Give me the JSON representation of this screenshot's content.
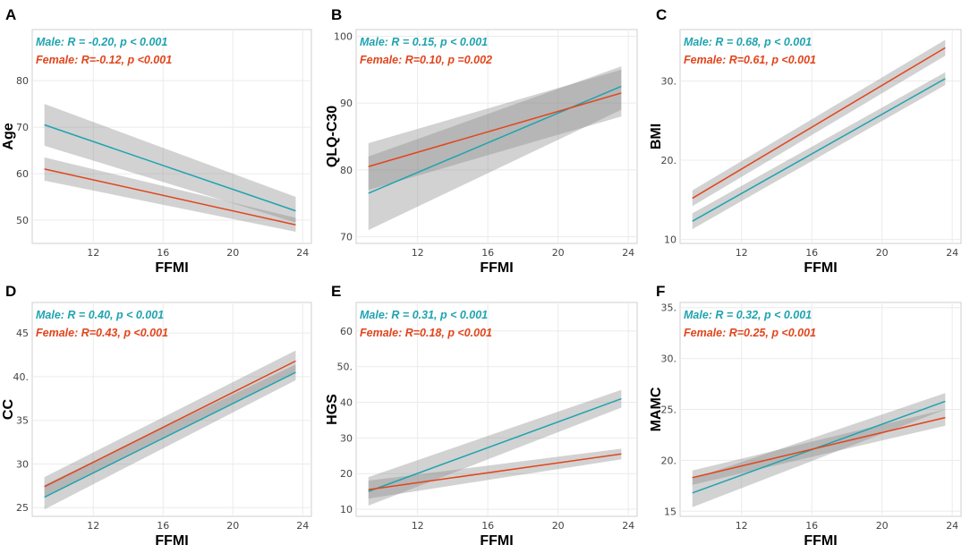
{
  "colors": {
    "male": "#1fa3b0",
    "female": "#e2451c",
    "band": "#8a8a8a",
    "grid": "#ebebeb",
    "frame": "#cfcfcf"
  },
  "chart_data": [
    {
      "type": "line",
      "panel": "A",
      "xlabel": "FFMI",
      "ylabel": "Age",
      "xlim": [
        8.5,
        24.5
      ],
      "ylim": [
        45,
        91
      ],
      "xticks": [
        12,
        16,
        20,
        24
      ],
      "yticks": [
        50,
        60,
        70,
        80
      ],
      "xtick_labels": [
        "12",
        "16",
        "20",
        "24"
      ],
      "ytick_labels": [
        "50",
        "60",
        "70",
        "80"
      ],
      "series": [
        {
          "name": "Male",
          "x": [
            9.2,
            23.6
          ],
          "y": [
            70.5,
            52
          ],
          "ci_lower": [
            66,
            49.5
          ],
          "ci_upper": [
            75,
            55
          ],
          "annotation": "Male: R = -0.20, p < 0.001"
        },
        {
          "name": "Female",
          "x": [
            9.2,
            23.6
          ],
          "y": [
            61,
            49
          ],
          "ci_lower": [
            58.5,
            47.5
          ],
          "ci_upper": [
            63.5,
            50.5
          ],
          "annotation": "Female: R=-0.12, p <0.001"
        }
      ]
    },
    {
      "type": "line",
      "panel": "B",
      "xlabel": "FFMI",
      "ylabel": "QLQ-C30",
      "xlim": [
        8.5,
        24.5
      ],
      "ylim": [
        69,
        101
      ],
      "xticks": [
        12,
        16,
        20,
        24
      ],
      "yticks": [
        70,
        80,
        90,
        100
      ],
      "xtick_labels": [
        "12",
        "16",
        "20",
        "24"
      ],
      "ytick_labels": [
        "70",
        "80",
        "90",
        "100"
      ],
      "series": [
        {
          "name": "Male",
          "x": [
            9.2,
            23.6
          ],
          "y": [
            76.5,
            92.5
          ],
          "ci_lower": [
            71,
            89
          ],
          "ci_upper": [
            82,
            95.5
          ],
          "annotation": "Male: R = 0.15, p < 0.001"
        },
        {
          "name": "Female",
          "x": [
            9.2,
            23.6
          ],
          "y": [
            80.5,
            91.5
          ],
          "ci_lower": [
            77,
            88
          ],
          "ci_upper": [
            84,
            95
          ],
          "annotation": "Female: R=0.10, p =0.002"
        }
      ]
    },
    {
      "type": "line",
      "panel": "C",
      "xlabel": "FFMI",
      "ylabel": "BMI",
      "xlim": [
        8.5,
        24.5
      ],
      "ylim": [
        9.5,
        36.5
      ],
      "xticks": [
        12,
        16,
        20,
        24
      ],
      "yticks": [
        10,
        20,
        30
      ],
      "xtick_labels": [
        "12",
        "16",
        "20",
        "24"
      ],
      "ytick_labels": [
        "10",
        "20.",
        "30."
      ],
      "series": [
        {
          "name": "Male",
          "x": [
            9.2,
            23.6
          ],
          "y": [
            12.3,
            30.3
          ],
          "ci_lower": [
            11.3,
            29.5
          ],
          "ci_upper": [
            13.3,
            31.1
          ],
          "annotation": "Male: R = 0.68, p < 0.001"
        },
        {
          "name": "Female",
          "x": [
            9.2,
            23.6
          ],
          "y": [
            15.2,
            34.2
          ],
          "ci_lower": [
            14.2,
            33.2
          ],
          "ci_upper": [
            16.2,
            35.2
          ],
          "annotation": "Female: R=0.61, p <0.001"
        }
      ]
    },
    {
      "type": "line",
      "panel": "D",
      "xlabel": "FFMI",
      "ylabel": "CC",
      "xlim": [
        8.5,
        24.5
      ],
      "ylim": [
        24,
        48.5
      ],
      "xticks": [
        12,
        16,
        20,
        24
      ],
      "yticks": [
        25,
        30,
        35,
        40,
        45
      ],
      "xtick_labels": [
        "12",
        "16",
        "20",
        "24"
      ],
      "ytick_labels": [
        "25",
        "30",
        "35",
        "40.",
        "45"
      ],
      "series": [
        {
          "name": "Male",
          "x": [
            9.2,
            23.6
          ],
          "y": [
            26.2,
            40.5
          ],
          "ci_lower": [
            24.8,
            39.6
          ],
          "ci_upper": [
            27.6,
            41.4
          ],
          "annotation": "Male: R = 0.40, p < 0.001"
        },
        {
          "name": "Female",
          "x": [
            9.2,
            23.6
          ],
          "y": [
            27.4,
            41.8
          ],
          "ci_lower": [
            26.3,
            40.6
          ],
          "ci_upper": [
            28.5,
            43
          ],
          "annotation": "Female: R=0.43, p <0.001"
        }
      ]
    },
    {
      "type": "line",
      "panel": "E",
      "xlabel": "FFMI",
      "ylabel": "HGS",
      "xlim": [
        8.5,
        24.5
      ],
      "ylim": [
        8,
        68
      ],
      "xticks": [
        12,
        16,
        20,
        24
      ],
      "yticks": [
        10,
        20,
        30,
        40,
        50,
        60
      ],
      "xtick_labels": [
        "12",
        "16",
        "20",
        "24"
      ],
      "ytick_labels": [
        "10",
        "20",
        "30",
        "40",
        "50.",
        "60"
      ],
      "series": [
        {
          "name": "Male",
          "x": [
            9.2,
            23.6
          ],
          "y": [
            15,
            41
          ],
          "ci_lower": [
            11,
            38.5
          ],
          "ci_upper": [
            19,
            43.5
          ],
          "annotation": "Male: R = 0.31, p < 0.001"
        },
        {
          "name": "Female",
          "x": [
            9.2,
            23.6
          ],
          "y": [
            15.5,
            25.5
          ],
          "ci_lower": [
            13,
            24
          ],
          "ci_upper": [
            18,
            27
          ],
          "annotation": "Female: R=0.18, p <0.001"
        }
      ]
    },
    {
      "type": "line",
      "panel": "F",
      "xlabel": "FFMI",
      "ylabel": "MAMC",
      "xlim": [
        8.5,
        24.5
      ],
      "ylim": [
        14.5,
        35.5
      ],
      "xticks": [
        12,
        16,
        20,
        24
      ],
      "yticks": [
        15,
        20,
        25,
        30,
        35
      ],
      "xtick_labels": [
        "12",
        "16",
        "20",
        "24"
      ],
      "ytick_labels": [
        "15",
        "20.",
        "25.",
        "30.",
        "35."
      ],
      "series": [
        {
          "name": "Male",
          "x": [
            9.2,
            23.6
          ],
          "y": [
            16.8,
            25.8
          ],
          "ci_lower": [
            15.4,
            25
          ],
          "ci_upper": [
            18.2,
            26.6
          ],
          "annotation": "Male: R = 0.32, p < 0.001"
        },
        {
          "name": "Female",
          "x": [
            9.2,
            23.6
          ],
          "y": [
            18.3,
            24.2
          ],
          "ci_lower": [
            17.6,
            23.4
          ],
          "ci_upper": [
            19,
            25
          ],
          "annotation": "Female: R=0.25, p <0.001"
        }
      ]
    }
  ]
}
